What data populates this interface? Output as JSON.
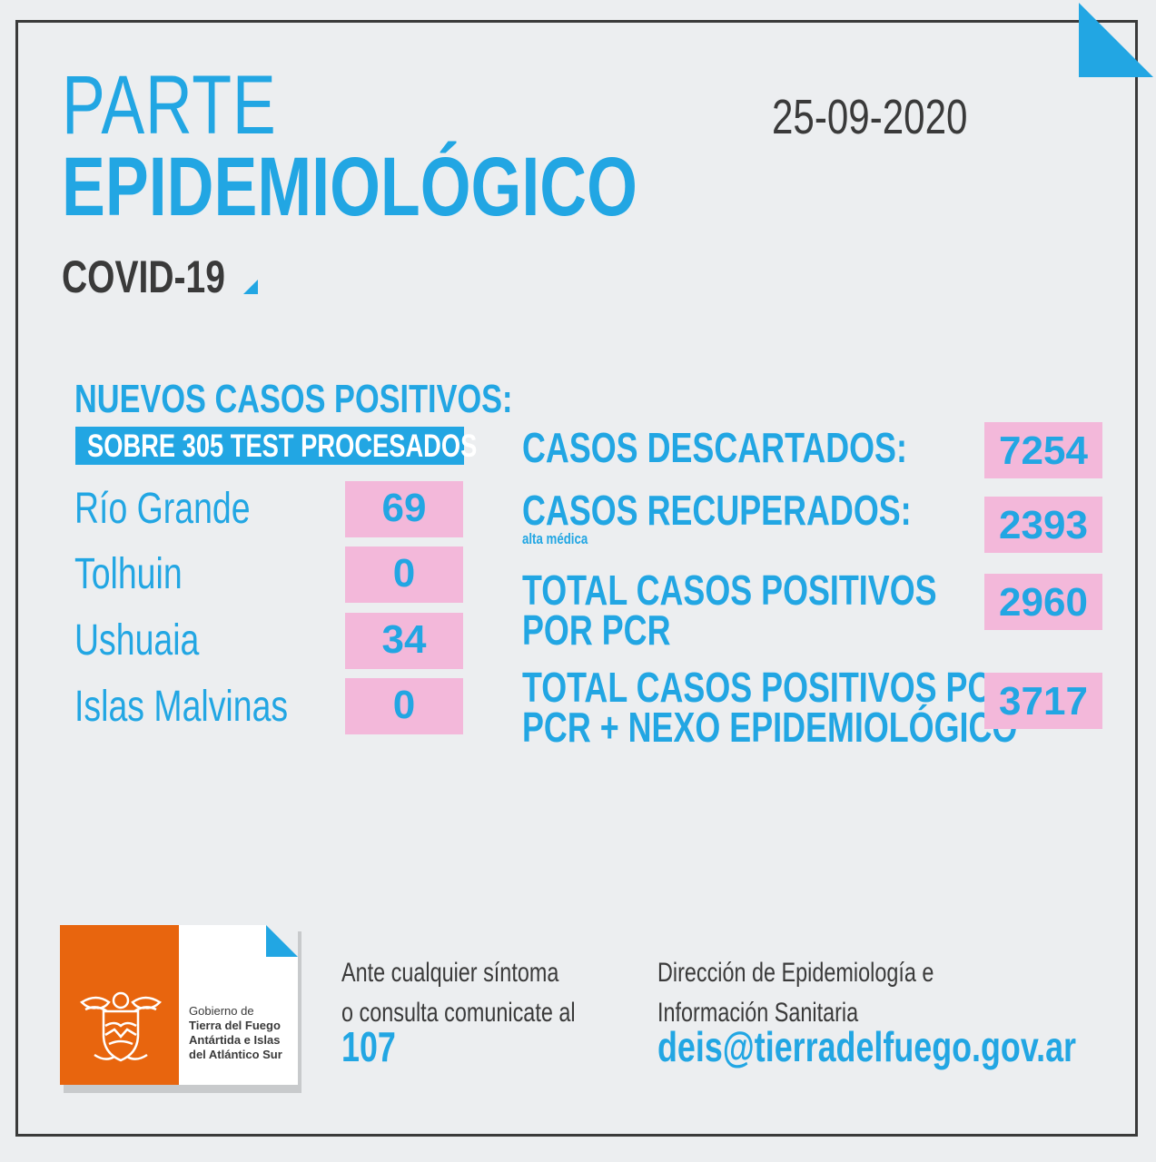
{
  "header": {
    "title_line1": "PARTE",
    "title_line2": "EPIDEMIOLÓGICO",
    "subtitle": "COVID-19",
    "date": "25-09-2020"
  },
  "new_cases": {
    "title": "NUEVOS CASOS POSITIVOS:",
    "tests_note": "SOBRE 305 TEST PROCESADOS",
    "cities": [
      {
        "name": "Río Grande",
        "value": "69"
      },
      {
        "name": "Tolhuin",
        "value": "0"
      },
      {
        "name": "Ushuaia",
        "value": "34"
      },
      {
        "name": "Islas Malvinas",
        "value": "0"
      }
    ]
  },
  "totals": {
    "descartados_label": "CASOS DESCARTADOS:",
    "descartados_value": "7254",
    "recuperados_label": "CASOS RECUPERADOS:",
    "recuperados_sub": "alta médica",
    "recuperados_value": "2393",
    "pcr_label_line1": "TOTAL CASOS POSITIVOS",
    "pcr_label_line2": "POR PCR",
    "pcr_value": "2960",
    "nexo_label_line1": "TOTAL CASOS POSITIVOS POR",
    "nexo_label_line2": "PCR + NEXO EPIDEMIOLÓGICO",
    "nexo_value": "3717"
  },
  "footer": {
    "logo_line1": "Gobierno de",
    "logo_line2": "Tierra del Fuego",
    "logo_line3": "Antártida e Islas",
    "logo_line4": "del Atlántico Sur",
    "contact_line1": "Ante cualquier síntoma",
    "contact_line2": "o consulta comunicate al",
    "phone": "107",
    "dept_line1": "Dirección de Epidemiología e",
    "dept_line2": "Información Sanitaria",
    "email": "deis@tierradelfuego.gov.ar"
  },
  "colors": {
    "accent_blue": "#22a6e3",
    "value_pink": "#f3b8da",
    "text_dark": "#3a3a3a",
    "background": "#eceef0",
    "logo_orange": "#e8650e"
  }
}
